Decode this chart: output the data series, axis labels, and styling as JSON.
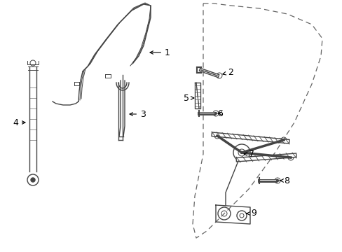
{
  "background_color": "#ffffff",
  "line_color": "#444444",
  "dashed_color": "#666666",
  "label_color": "#000000",
  "lw_main": 1.0,
  "lw_thick": 2.0,
  "lw_thin": 0.7
}
